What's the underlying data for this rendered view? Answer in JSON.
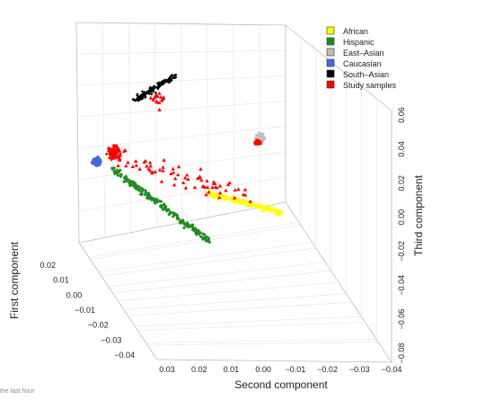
{
  "chart_data": {
    "type": "scatter",
    "subtype": "3d-scatter",
    "axes": {
      "first": {
        "label": "First component",
        "ticks": [
          "0.02",
          "0.01",
          "0.00",
          "−0.01",
          "−0.02",
          "−0.03",
          "−0.04"
        ],
        "range": [
          -0.04,
          0.02
        ]
      },
      "second": {
        "label": "Second component",
        "ticks": [
          "0.03",
          "0.02",
          "0.01",
          "0.00",
          "−0.01",
          "−0.02",
          "−0.03",
          "−0.04"
        ],
        "range": [
          -0.04,
          0.03
        ]
      },
      "third": {
        "label": "Third component",
        "ticks": [
          "0.06",
          "0.04",
          "0.02",
          "0.00",
          "−0.02",
          "−0.04",
          "−0.06",
          "−0.08"
        ],
        "range": [
          -0.08,
          0.06
        ]
      }
    },
    "grid": true,
    "legend_position": "top-right",
    "series": [
      {
        "name": "African",
        "color": "#ffff00",
        "marker": "diamond",
        "cluster": "elongated band toward negative second component"
      },
      {
        "name": "Hispanic",
        "color": "#228b22",
        "marker": "diamond",
        "cluster": "diagonal band from Caucasian cluster toward lower center"
      },
      {
        "name": "East–Asian",
        "color": "#bebebe",
        "marker": "diamond",
        "cluster": "tight cluster on right"
      },
      {
        "name": "Caucasian",
        "color": "#4169e1",
        "marker": "diamond",
        "cluster": "tight cluster on left"
      },
      {
        "name": "South–Asian",
        "color": "#000000",
        "marker": "diamond",
        "cluster": "cluster at top"
      },
      {
        "name": "Study samples",
        "color": "#ff0000",
        "marker": "triangle",
        "cluster": "spread across populations"
      }
    ]
  },
  "caption": "the last hour"
}
